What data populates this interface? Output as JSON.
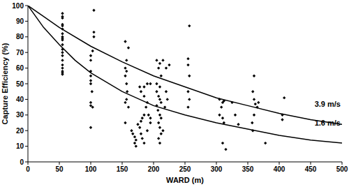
{
  "chart_data": {
    "type": "scatter",
    "x_label": "WARD (m)",
    "y_label": "Capture Efficiency (%)",
    "xlim": [
      0,
      500
    ],
    "xticks": [
      0,
      50,
      100,
      150,
      200,
      250,
      300,
      350,
      400,
      450,
      500
    ],
    "ylim": [
      0,
      100
    ],
    "yticks": [
      0,
      10,
      20,
      30,
      40,
      50,
      60,
      70,
      80,
      90,
      100
    ],
    "grid": false,
    "series": [
      {
        "type": "scatter",
        "marker": "diamond",
        "color": "#000000",
        "x": [
          55,
          55,
          55,
          55,
          55,
          55,
          55,
          55,
          55,
          55,
          55,
          55,
          55,
          55,
          55,
          55,
          55,
          55,
          55,
          55,
          105,
          105,
          105,
          103,
          100,
          100,
          100,
          100,
          100,
          100,
          102,
          100,
          100,
          103,
          100,
          155,
          160,
          157,
          155,
          157,
          155,
          157,
          158,
          157,
          155,
          160,
          155,
          165,
          167,
          170,
          172,
          170,
          172,
          175,
          178,
          180,
          182,
          180,
          182,
          185,
          185,
          180,
          185,
          190,
          185,
          190,
          188,
          192,
          190,
          195,
          195,
          195,
          178,
          205,
          210,
          208,
          215,
          212,
          205,
          210,
          205,
          208,
          210,
          212,
          205,
          207,
          210,
          212,
          208,
          210,
          212,
          208,
          210,
          220,
          225,
          220,
          222,
          218,
          215,
          257,
          255,
          255,
          257,
          255,
          257,
          255,
          305,
          310,
          308,
          305,
          310,
          312,
          310,
          315,
          312,
          330,
          335,
          325,
          360,
          358,
          360,
          362,
          365,
          360,
          357,
          358,
          367,
          378,
          408,
          405,
          405
        ],
        "values": [
          95,
          93,
          92,
          88,
          87,
          85,
          82,
          80,
          79,
          78,
          75,
          72,
          70,
          68,
          65,
          62,
          60,
          58,
          57,
          56,
          97,
          83,
          80,
          71,
          68,
          65,
          58,
          55,
          52,
          50,
          45,
          38,
          36,
          35,
          22,
          77,
          73,
          65,
          60,
          58,
          55,
          50,
          45,
          40,
          38,
          35,
          25,
          20,
          18,
          16,
          14,
          12,
          10,
          24,
          22,
          18,
          15,
          26,
          28,
          12,
          30,
          45,
          48,
          50,
          42,
          38,
          35,
          30,
          20,
          25,
          50,
          28,
          48,
          65,
          63,
          60,
          65,
          55,
          50,
          48,
          45,
          42,
          40,
          38,
          36,
          33,
          30,
          28,
          25,
          22,
          18,
          15,
          12,
          60,
          62,
          45,
          40,
          35,
          20,
          87,
          66,
          62,
          55,
          45,
          40,
          35,
          40,
          38,
          35,
          30,
          28,
          25,
          12,
          8,
          39,
          30,
          24,
          38,
          55,
          45,
          40,
          37,
          35,
          30,
          25,
          20,
          38,
          12,
          41,
          30,
          27
        ]
      },
      {
        "type": "line",
        "name": "3.9 m/s",
        "color": "#000000",
        "line_style": "solid",
        "x": [
          0,
          25,
          50,
          100,
          150,
          200,
          250,
          300,
          350,
          400,
          450,
          500
        ],
        "values": [
          100,
          93,
          86,
          74,
          64,
          55,
          48,
          41,
          36,
          31,
          27,
          24
        ]
      },
      {
        "type": "line",
        "name": "1.6 m/s",
        "color": "#000000",
        "line_style": "solid",
        "x": [
          0,
          25,
          50,
          75,
          100,
          150,
          200,
          250,
          300,
          350,
          400,
          450,
          500
        ],
        "values": [
          100,
          86,
          75,
          65,
          57,
          45,
          36,
          30,
          25,
          21,
          17,
          14,
          12
        ]
      }
    ]
  }
}
